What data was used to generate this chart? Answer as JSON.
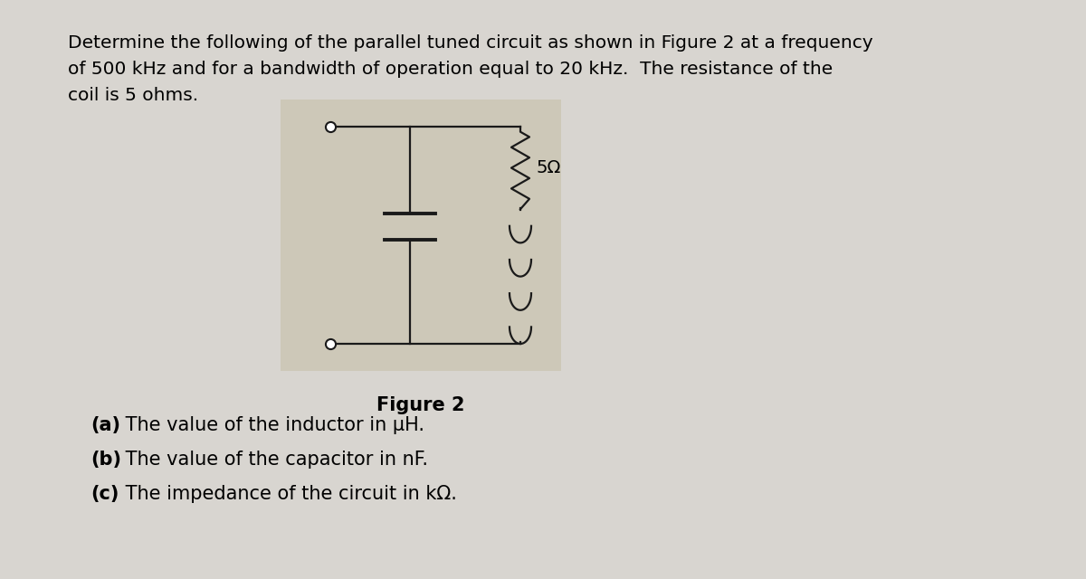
{
  "background_color": "#d8d5d0",
  "main_text_line1": "Determine the following of the parallel tuned circuit as shown in Figure 2 at a frequency",
  "main_text_line2": "of 500 kHz and for a bandwidth of operation equal to 20 kHz.  The resistance of the",
  "main_text_line3": "coil is 5 ohms.",
  "main_fontsize": 14.5,
  "figure2_label": "Figure 2",
  "figure2_label_fontsize": 15,
  "questions": [
    "(a) The value of the inductor in μH.",
    "(b) The value of the capacitor in nF.",
    "(c) The impedance of the circuit in kΩ."
  ],
  "bold_parts": [
    "(a)",
    "(b)",
    "(c)"
  ],
  "questions_fontsize": 15,
  "circuit_bg": "#cdc8b8",
  "resistor_label": "5Ω",
  "wire_color": "#1a1a1a",
  "wire_lw": 1.6
}
